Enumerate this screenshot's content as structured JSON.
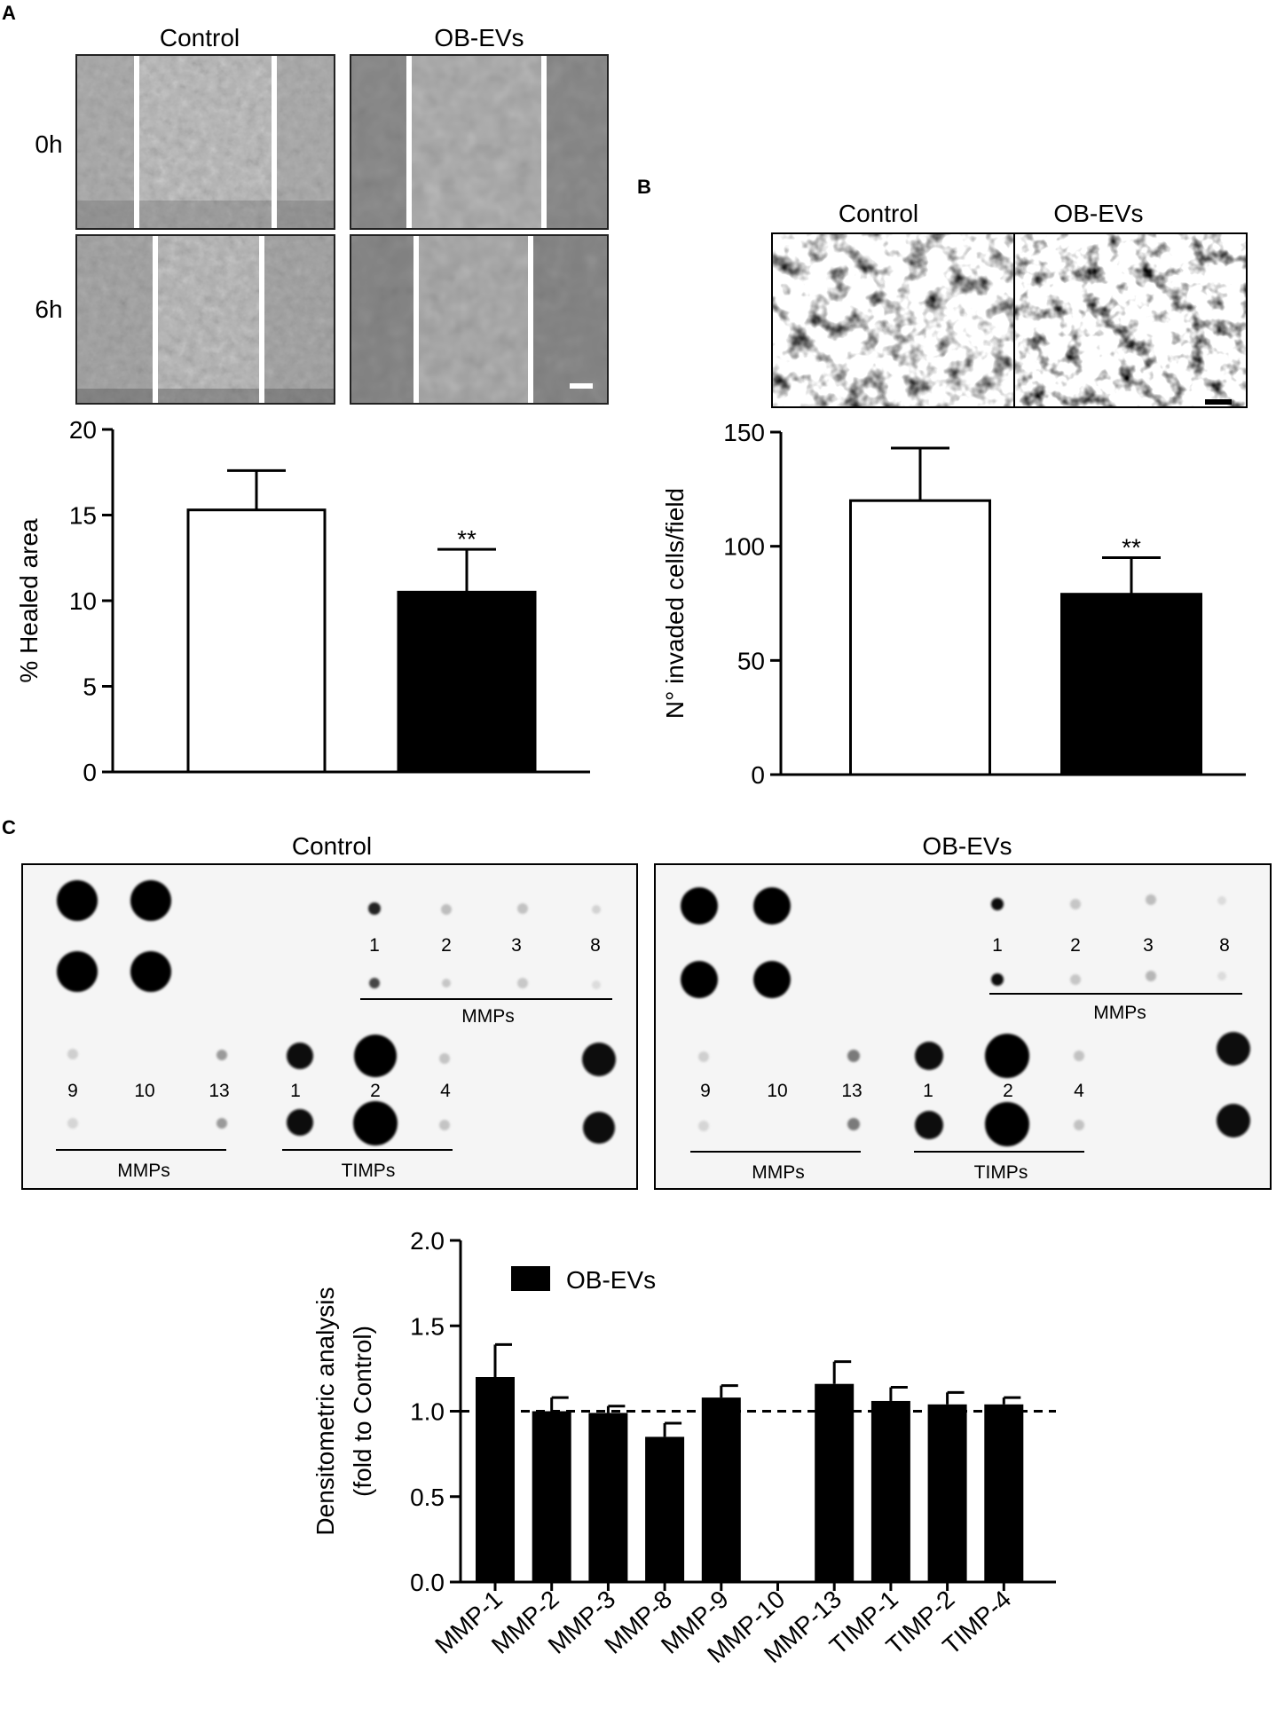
{
  "panels": {
    "a": "A",
    "b": "B",
    "c": "C"
  },
  "panel_a": {
    "col_labels": [
      "Control",
      "OB-EVs"
    ],
    "row_labels": [
      "0h",
      "6h"
    ]
  },
  "panel_b": {
    "col_labels": [
      "Control",
      "OB-EVs"
    ]
  },
  "panel_c": {
    "blot_titles": [
      "Control",
      "OB-EVs"
    ],
    "top_numbers": [
      "1",
      "2",
      "3",
      "8"
    ],
    "bottom_numbers": [
      "9",
      "10",
      "13",
      "1",
      "2",
      "4"
    ],
    "mmps_label": "MMPs",
    "timps_label": "TIMPs"
  },
  "chart_data": [
    {
      "id": "healed-area",
      "type": "bar",
      "categories": [
        "Control",
        "OB-EVs"
      ],
      "values": [
        15.3,
        10.5
      ],
      "errors": [
        2.3,
        2.5
      ],
      "significance": [
        "",
        "**"
      ],
      "colors": [
        "#ffffff",
        "#000000"
      ],
      "ylabel": "% Healed area",
      "ylim": [
        0,
        20
      ],
      "yticks": [
        0,
        5,
        10,
        15,
        20
      ]
    },
    {
      "id": "invaded-cells",
      "type": "bar",
      "categories": [
        "Control",
        "OB-EVs"
      ],
      "values": [
        120,
        79
      ],
      "errors": [
        23,
        16
      ],
      "significance": [
        "",
        "**"
      ],
      "colors": [
        "#ffffff",
        "#000000"
      ],
      "ylabel": "N° invaded cells/field",
      "ylim": [
        0,
        150
      ],
      "yticks": [
        0,
        50,
        100,
        150
      ]
    },
    {
      "id": "densitometry",
      "type": "bar",
      "categories": [
        "MMP-1",
        "MMP-2",
        "MMP-3",
        "MMP-8",
        "MMP-9",
        "MMP-10",
        "MMP-13",
        "TIMP-1",
        "TIMP-2",
        "TIMP-4"
      ],
      "series": [
        {
          "name": "OB-EVs",
          "values": [
            1.2,
            1.0,
            0.99,
            0.85,
            1.08,
            null,
            1.16,
            1.06,
            1.04,
            1.04
          ],
          "errors": [
            0.19,
            0.08,
            0.04,
            0.08,
            0.07,
            null,
            0.13,
            0.08,
            0.07,
            0.04
          ]
        }
      ],
      "reference_line": 1.0,
      "ylabel": "Densitometric analysis\n(fold to Control)",
      "ylim": [
        0,
        2.0
      ],
      "yticks": [
        "0.0",
        "0.5",
        "1.0",
        "1.5",
        "2.0"
      ],
      "legend": "top-left"
    }
  ]
}
